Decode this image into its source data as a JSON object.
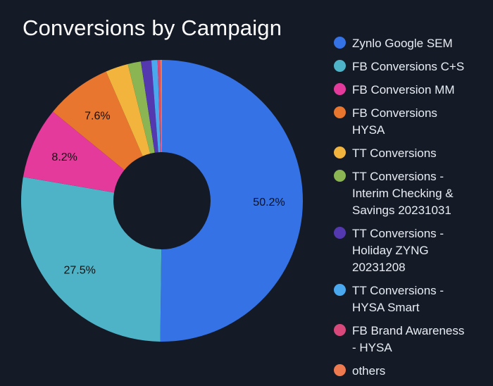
{
  "chart_data": {
    "type": "pie",
    "subtype": "donut",
    "title": "Conversions by Campaign",
    "legend_position": "right",
    "slices": [
      {
        "name": "Zynlo Google SEM",
        "legend_label": "Zynlo Google SEM",
        "value": 50.2,
        "color": "#3572e6",
        "label": "50.2%"
      },
      {
        "name": "FB Conversions C+S",
        "legend_label": "FB Conversions C+S",
        "value": 27.5,
        "color": "#4fb3c8",
        "label": "27.5%"
      },
      {
        "name": "FB Conversion MM",
        "legend_label": "FB Conversion MM",
        "value": 8.2,
        "color": "#e33a9c",
        "label": "8.2%"
      },
      {
        "name": "FB Conversions HYSA",
        "legend_label": "FB Conversions\nHYSA",
        "value": 7.6,
        "color": "#e8762e",
        "label": "7.6%"
      },
      {
        "name": "TT Conversions",
        "legend_label": "TT Conversions",
        "value": 2.6,
        "color": "#f2b43d",
        "label": ""
      },
      {
        "name": "TT Conversions - Interim Checking & Savings 20231031",
        "legend_label": "TT Conversions -\nInterim Checking &\nSavings 20231031",
        "value": 1.5,
        "color": "#8ab552",
        "label": ""
      },
      {
        "name": "TT Conversions - Holiday ZYNG 20231208",
        "legend_label": "TT Conversions -\nHoliday ZYNG\n20231208",
        "value": 1.2,
        "color": "#5438b0",
        "label": ""
      },
      {
        "name": "TT Conversions - HYSA Smart",
        "legend_label": "TT Conversions -\nHYSA Smart",
        "value": 0.7,
        "color": "#4aa8ee",
        "label": ""
      },
      {
        "name": "FB Brand Awareness - HYSA",
        "legend_label": "FB Brand Awareness\n- HYSA",
        "value": 0.3,
        "color": "#d9487a",
        "label": ""
      },
      {
        "name": "others",
        "legend_label": "others",
        "value": 0.2,
        "color": "#ee7a50",
        "label": ""
      }
    ]
  }
}
